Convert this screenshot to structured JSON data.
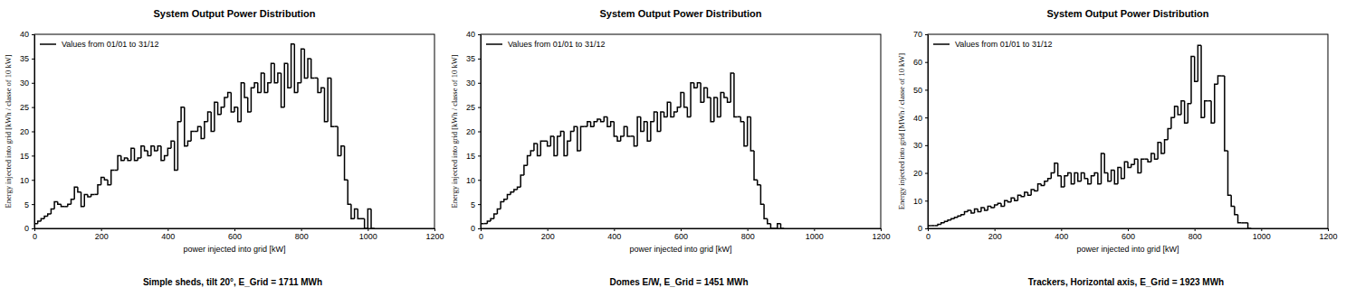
{
  "chart_data": [
    {
      "type": "histogram",
      "title": "System Output Power Distribution",
      "x_label": "power injected into grid [kW]",
      "y_label": "Energy injected into grid [kWh / classe of 10 kW]",
      "caption": "Simple sheds, tilt 20°, E_Grid = 1711 MWh",
      "bins": [
        0,
        10,
        20,
        30,
        40,
        50,
        60,
        70,
        80,
        90,
        100,
        110,
        120,
        130,
        140,
        150,
        160,
        170,
        180,
        190,
        200,
        210,
        220,
        230,
        240,
        250,
        260,
        270,
        280,
        290,
        300,
        310,
        320,
        330,
        340,
        350,
        360,
        370,
        380,
        390,
        400,
        410,
        420,
        430,
        440,
        450,
        460,
        470,
        480,
        490,
        500,
        510,
        520,
        530,
        540,
        550,
        560,
        570,
        580,
        590,
        600,
        610,
        620,
        630,
        640,
        650,
        660,
        670,
        680,
        690,
        700,
        710,
        720,
        730,
        740,
        750,
        760,
        770,
        780,
        790,
        800,
        810,
        820,
        830,
        840,
        850,
        860,
        870,
        880,
        890,
        900,
        910,
        920,
        930,
        940,
        950,
        960,
        970,
        980,
        990,
        1000,
        1010,
        1020
      ],
      "series": [
        {
          "name": "Values from 01/01 to 31/12",
          "color": "#000000",
          "values": [
            1,
            1.5,
            2,
            2.5,
            3,
            4,
            5.5,
            5,
            4.5,
            4.5,
            5,
            6,
            8.5,
            7.5,
            4.5,
            7,
            6.5,
            7,
            7,
            9,
            10.5,
            10,
            9,
            12,
            12,
            15,
            14,
            14.5,
            14,
            16.5,
            14,
            14.5,
            17,
            16,
            15,
            17,
            16,
            17,
            14,
            15,
            16.5,
            18,
            12,
            22,
            25,
            17,
            18,
            20,
            20,
            21,
            18.5,
            22,
            24,
            20,
            26,
            23.5,
            25,
            27,
            28,
            24,
            25,
            22,
            30,
            27,
            24,
            29,
            30,
            28,
            32,
            28,
            30,
            34,
            30,
            32,
            25,
            34,
            29,
            38,
            28,
            30,
            37,
            31,
            35,
            31,
            31,
            28,
            29,
            22,
            31,
            21,
            21,
            15,
            17,
            10,
            5,
            2,
            4,
            2,
            2,
            0,
            4,
            0
          ]
        }
      ],
      "xlim": [
        0,
        1200
      ],
      "xticks": [
        0,
        200,
        400,
        600,
        800,
        1000,
        1200
      ],
      "ylim": [
        0,
        40
      ],
      "yticks": [
        0,
        5,
        10,
        15,
        20,
        25,
        30,
        35,
        40
      ],
      "legend": "upper left",
      "grid": false
    },
    {
      "type": "histogram",
      "title": "System Output Power Distribution",
      "x_label": "power injected into grid [kW]",
      "y_label": "Energy injected into grid [kWh / classe of 10 kW]",
      "caption": "Domes E/W,  E_Grid = 1451 MWh",
      "bins": [
        0,
        10,
        20,
        30,
        40,
        50,
        60,
        70,
        80,
        90,
        100,
        110,
        120,
        130,
        140,
        150,
        160,
        170,
        180,
        190,
        200,
        210,
        220,
        230,
        240,
        250,
        260,
        270,
        280,
        290,
        300,
        310,
        320,
        330,
        340,
        350,
        360,
        370,
        380,
        390,
        400,
        410,
        420,
        430,
        440,
        450,
        460,
        470,
        480,
        490,
        500,
        510,
        520,
        530,
        540,
        550,
        560,
        570,
        580,
        590,
        600,
        610,
        620,
        630,
        640,
        650,
        660,
        670,
        680,
        690,
        700,
        710,
        720,
        730,
        740,
        750,
        760,
        770,
        780,
        790,
        800,
        810,
        820,
        830,
        840,
        850,
        860,
        870,
        880,
        890,
        900,
        910
      ],
      "series": [
        {
          "name": "Values from 01/01 to 31/12",
          "color": "#000000",
          "values": [
            1,
            1,
            1.5,
            2,
            3,
            4,
            5.5,
            6,
            7,
            7.5,
            8,
            8.5,
            11,
            13,
            15,
            16,
            17.5,
            15,
            18,
            18,
            17,
            19,
            15,
            19,
            20,
            15,
            18,
            20,
            21,
            16,
            21,
            21,
            22,
            21,
            22,
            22.5,
            22,
            23,
            21,
            22,
            19,
            18,
            19,
            21,
            19,
            19,
            17,
            23,
            20,
            22,
            18,
            22,
            24,
            20,
            24,
            23,
            26,
            23,
            24,
            25,
            28,
            25,
            23,
            30,
            29,
            30,
            26,
            29,
            27,
            22,
            27,
            23,
            28,
            27,
            26,
            32,
            23,
            23,
            22,
            17,
            23,
            16,
            10,
            9,
            5,
            2,
            1,
            0,
            0,
            1,
            0
          ]
        }
      ],
      "xlim": [
        0,
        1200
      ],
      "xticks": [
        0,
        200,
        400,
        600,
        800,
        1000,
        1200
      ],
      "ylim": [
        0,
        40
      ],
      "yticks": [
        0,
        5,
        10,
        15,
        20,
        25,
        30,
        35,
        40
      ],
      "legend": "upper left",
      "grid": false
    },
    {
      "type": "histogram",
      "title": "System Output Power Distribution",
      "x_label": "power injected into grid [kW]",
      "y_label": "Energy injected into grid [MWh / classe of 10 kW]",
      "caption": "Trackers, Horizontal axis,  E_Grid = 1923 MWh",
      "bins": [
        0,
        10,
        20,
        30,
        40,
        50,
        60,
        70,
        80,
        90,
        100,
        110,
        120,
        130,
        140,
        150,
        160,
        170,
        180,
        190,
        200,
        210,
        220,
        230,
        240,
        250,
        260,
        270,
        280,
        290,
        300,
        310,
        320,
        330,
        340,
        350,
        360,
        370,
        380,
        390,
        400,
        410,
        420,
        430,
        440,
        450,
        460,
        470,
        480,
        490,
        500,
        510,
        520,
        530,
        540,
        550,
        560,
        570,
        580,
        590,
        600,
        610,
        620,
        630,
        640,
        650,
        660,
        670,
        680,
        690,
        700,
        710,
        720,
        730,
        740,
        750,
        760,
        770,
        780,
        790,
        800,
        810,
        820,
        830,
        840,
        850,
        860,
        870,
        880,
        890,
        900,
        910,
        920,
        930,
        940,
        950,
        960,
        970
      ],
      "series": [
        {
          "name": "Values from 01/01 to 31/12",
          "color": "#000000",
          "values": [
            1,
            1,
            1,
            1.5,
            2,
            2.5,
            3,
            3.5,
            4,
            4.5,
            5,
            6,
            6.5,
            5.5,
            7,
            6,
            7.5,
            6.5,
            8,
            7.5,
            8.5,
            9,
            8,
            10,
            9.5,
            11,
            10,
            12,
            11.5,
            13,
            12,
            14,
            13.5,
            16,
            15.5,
            17,
            18,
            20,
            23.5,
            19,
            15,
            19,
            20,
            16,
            20,
            17,
            20,
            18,
            16,
            19,
            20,
            16,
            27,
            20,
            17,
            21,
            16,
            22,
            18,
            24,
            22,
            23,
            25,
            20,
            25,
            25,
            24,
            27,
            25,
            31,
            27,
            32,
            36,
            40,
            44,
            41,
            46,
            38,
            45,
            62,
            53,
            66,
            40,
            46,
            46,
            38,
            52,
            55,
            55,
            28,
            12,
            8,
            5,
            2,
            2,
            2,
            0
          ]
        }
      ],
      "xlim": [
        0,
        1200
      ],
      "xticks": [
        0,
        200,
        400,
        600,
        800,
        1000,
        1200
      ],
      "ylim": [
        0,
        70
      ],
      "yticks": [
        0,
        10,
        20,
        30,
        40,
        50,
        60,
        70
      ],
      "legend": "upper left",
      "grid": false
    }
  ]
}
